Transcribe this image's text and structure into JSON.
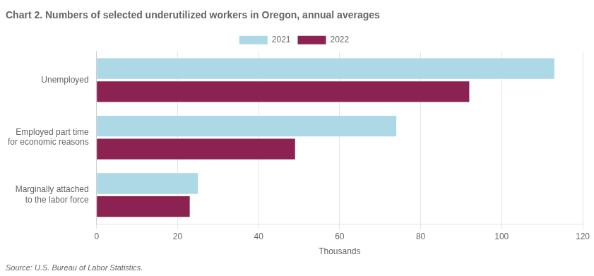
{
  "chart_data": {
    "type": "bar",
    "orientation": "horizontal",
    "title": "Chart 2. Numbers of selected underutilized workers in Oregon, annual averages",
    "categories": [
      "Unemployed",
      "Employed part time\nfor economic reasons",
      "Marginally attached\nto the labor force"
    ],
    "series": [
      {
        "name": "2021",
        "color": "#ADD8E6",
        "values": [
          113,
          74,
          25
        ]
      },
      {
        "name": "2022",
        "color": "#8B2252",
        "values": [
          92,
          49,
          23
        ]
      }
    ],
    "xlabel": "Thousands",
    "xlim": [
      0,
      120
    ],
    "xticks": [
      0,
      20,
      40,
      60,
      80,
      100,
      120
    ],
    "grid": true,
    "legend": "top",
    "annotations": [
      "Source: U.S. Bureau of Labor Statistics."
    ]
  }
}
